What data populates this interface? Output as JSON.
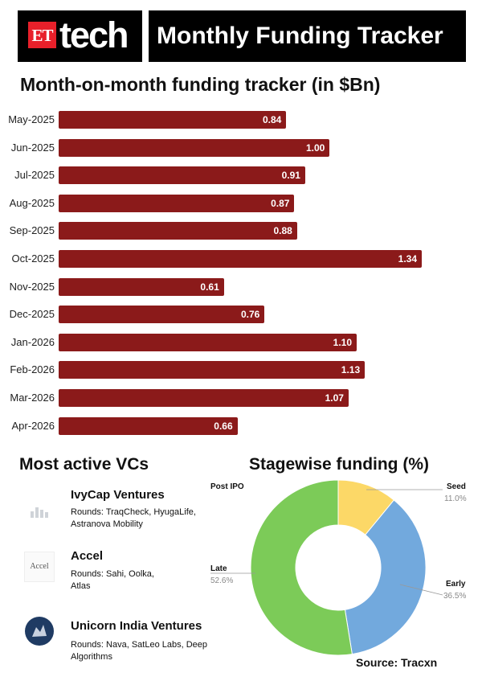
{
  "header": {
    "logo_et": "ET",
    "logo_tech": "tech",
    "title": "Monthly Funding Tracker"
  },
  "chart_title": "Month-on-month funding tracker (in $Bn)",
  "colors": {
    "bar": "#8b1a1a",
    "seed": "#fcd867",
    "early": "#72a9dd",
    "late": "#7ccb58"
  },
  "chart_data": [
    {
      "type": "bar",
      "orientation": "horizontal",
      "title": "Month-on-month funding tracker (in $Bn)",
      "categories": [
        "May-2025",
        "Jun-2025",
        "Jul-2025",
        "Aug-2025",
        "Sep-2025",
        "Oct-2025",
        "Nov-2025",
        "Dec-2025",
        "Jan-2026",
        "Feb-2026",
        "Mar-2026",
        "Apr-2026"
      ],
      "values": [
        0.84,
        1.0,
        0.91,
        0.87,
        0.88,
        1.34,
        0.61,
        0.76,
        1.1,
        1.13,
        1.07,
        0.66
      ],
      "value_labels": [
        "0.84",
        "1.00",
        "0.91",
        "0.87",
        "0.88",
        "1.34",
        "0.61",
        "0.76",
        "1.10",
        "1.13",
        "1.07",
        "0.66"
      ],
      "xlim": [
        0,
        1.6
      ],
      "grid": false,
      "data_labels": "inside-end"
    },
    {
      "type": "pie",
      "style": "donut",
      "title": "Stagewise funding (%)",
      "slices": [
        {
          "name": "Seed",
          "value": 11.0,
          "label": "11.0%",
          "color": "#fcd867"
        },
        {
          "name": "Early",
          "value": 36.5,
          "label": "36.5%",
          "color": "#72a9dd"
        },
        {
          "name": "Late",
          "value": 52.6,
          "label": "52.6%",
          "color": "#7ccb58"
        },
        {
          "name": "Post IPO",
          "value": 0,
          "label": "",
          "color": "#cccccc"
        }
      ]
    }
  ],
  "vcs": {
    "title": "Most active VCs",
    "items": [
      {
        "name": "IvyCap Ventures",
        "rounds": "Rounds: TraqCheck, HyugaLife, Astranova Mobility",
        "icon": "ivycap-logo"
      },
      {
        "name": "Accel",
        "rounds": "Rounds: Sahi, Oolka, Atlas",
        "icon": "accel-logo",
        "logo_text": "Accel"
      },
      {
        "name": "Unicorn India Ventures",
        "rounds": "Rounds: Nava, SatLeo Labs, Deep Algorithms",
        "icon": "unicorn-logo"
      }
    ]
  },
  "stagewise": {
    "title": "Stagewise funding (%)",
    "labels": {
      "post_ipo": "Post IPO",
      "seed": "Seed",
      "seed_pct": "11.0%",
      "early": "Early",
      "early_pct": "36.5%",
      "late": "Late",
      "late_pct": "52.6%"
    }
  },
  "source": "Source: Tracxn"
}
